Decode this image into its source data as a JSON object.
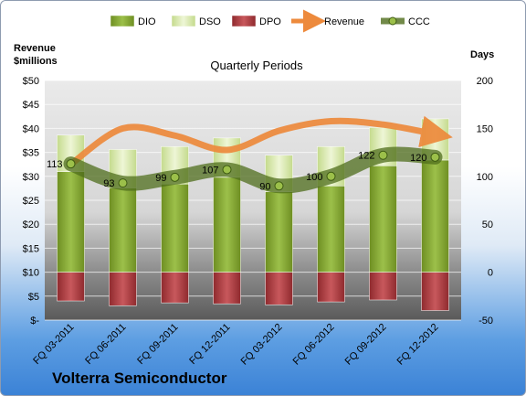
{
  "chart_data": {
    "type": "bar",
    "subtitle": "Quarterly Periods",
    "company": "Volterra Semiconductor",
    "left_axis_title": [
      "Revenue",
      "$millions"
    ],
    "right_axis_title": "Days",
    "categories": [
      "FQ 03-2011",
      "FQ 06-2011",
      "FQ 09-2011",
      "FQ 12-2011",
      "FQ 03-2012",
      "FQ 06-2012",
      "FQ 09-2012",
      "FQ 12-2012"
    ],
    "left_ticks": [
      "$-",
      "$5",
      "$10",
      "$15",
      "$20",
      "$25",
      "$30",
      "$35",
      "$40",
      "$45",
      "$50"
    ],
    "right_ticks": [
      "-50",
      "0",
      "50",
      "100",
      "150",
      "200"
    ],
    "left_ylim": [
      0,
      50
    ],
    "right_ylim": [
      -50,
      200
    ],
    "stacked_series_days": [
      {
        "name": "DIO",
        "color": "#7f9e2e",
        "values": [
          105,
          88,
          92,
          99,
          84,
          90,
          111,
          117
        ]
      },
      {
        "name": "DSO",
        "color": "#d4e6a8",
        "values": [
          38,
          40,
          39,
          41,
          38,
          41,
          40,
          43
        ]
      },
      {
        "name": "DPO",
        "color": "#b03c40",
        "values": [
          -30,
          -35,
          -32,
          -33,
          -34,
          -31,
          -29,
          -40
        ]
      }
    ],
    "revenue_series": {
      "name": "Revenue",
      "color": "#ed8a3c",
      "values": [
        32.5,
        40.0,
        38.5,
        35.5,
        39.5,
        41.5,
        40.8,
        38.8
      ]
    },
    "ccc_series": {
      "name": "CCC",
      "color": "#5c7e25",
      "values": [
        113,
        93,
        99,
        107,
        90,
        100,
        122,
        120
      ]
    },
    "ccc_labels": [
      "113",
      "93",
      "99",
      "107",
      "90",
      "100",
      "122",
      "120"
    ],
    "legend": [
      "DIO",
      "DSO",
      "DPO",
      "Revenue",
      "CCC"
    ],
    "legend_position": "top",
    "grid": true
  }
}
